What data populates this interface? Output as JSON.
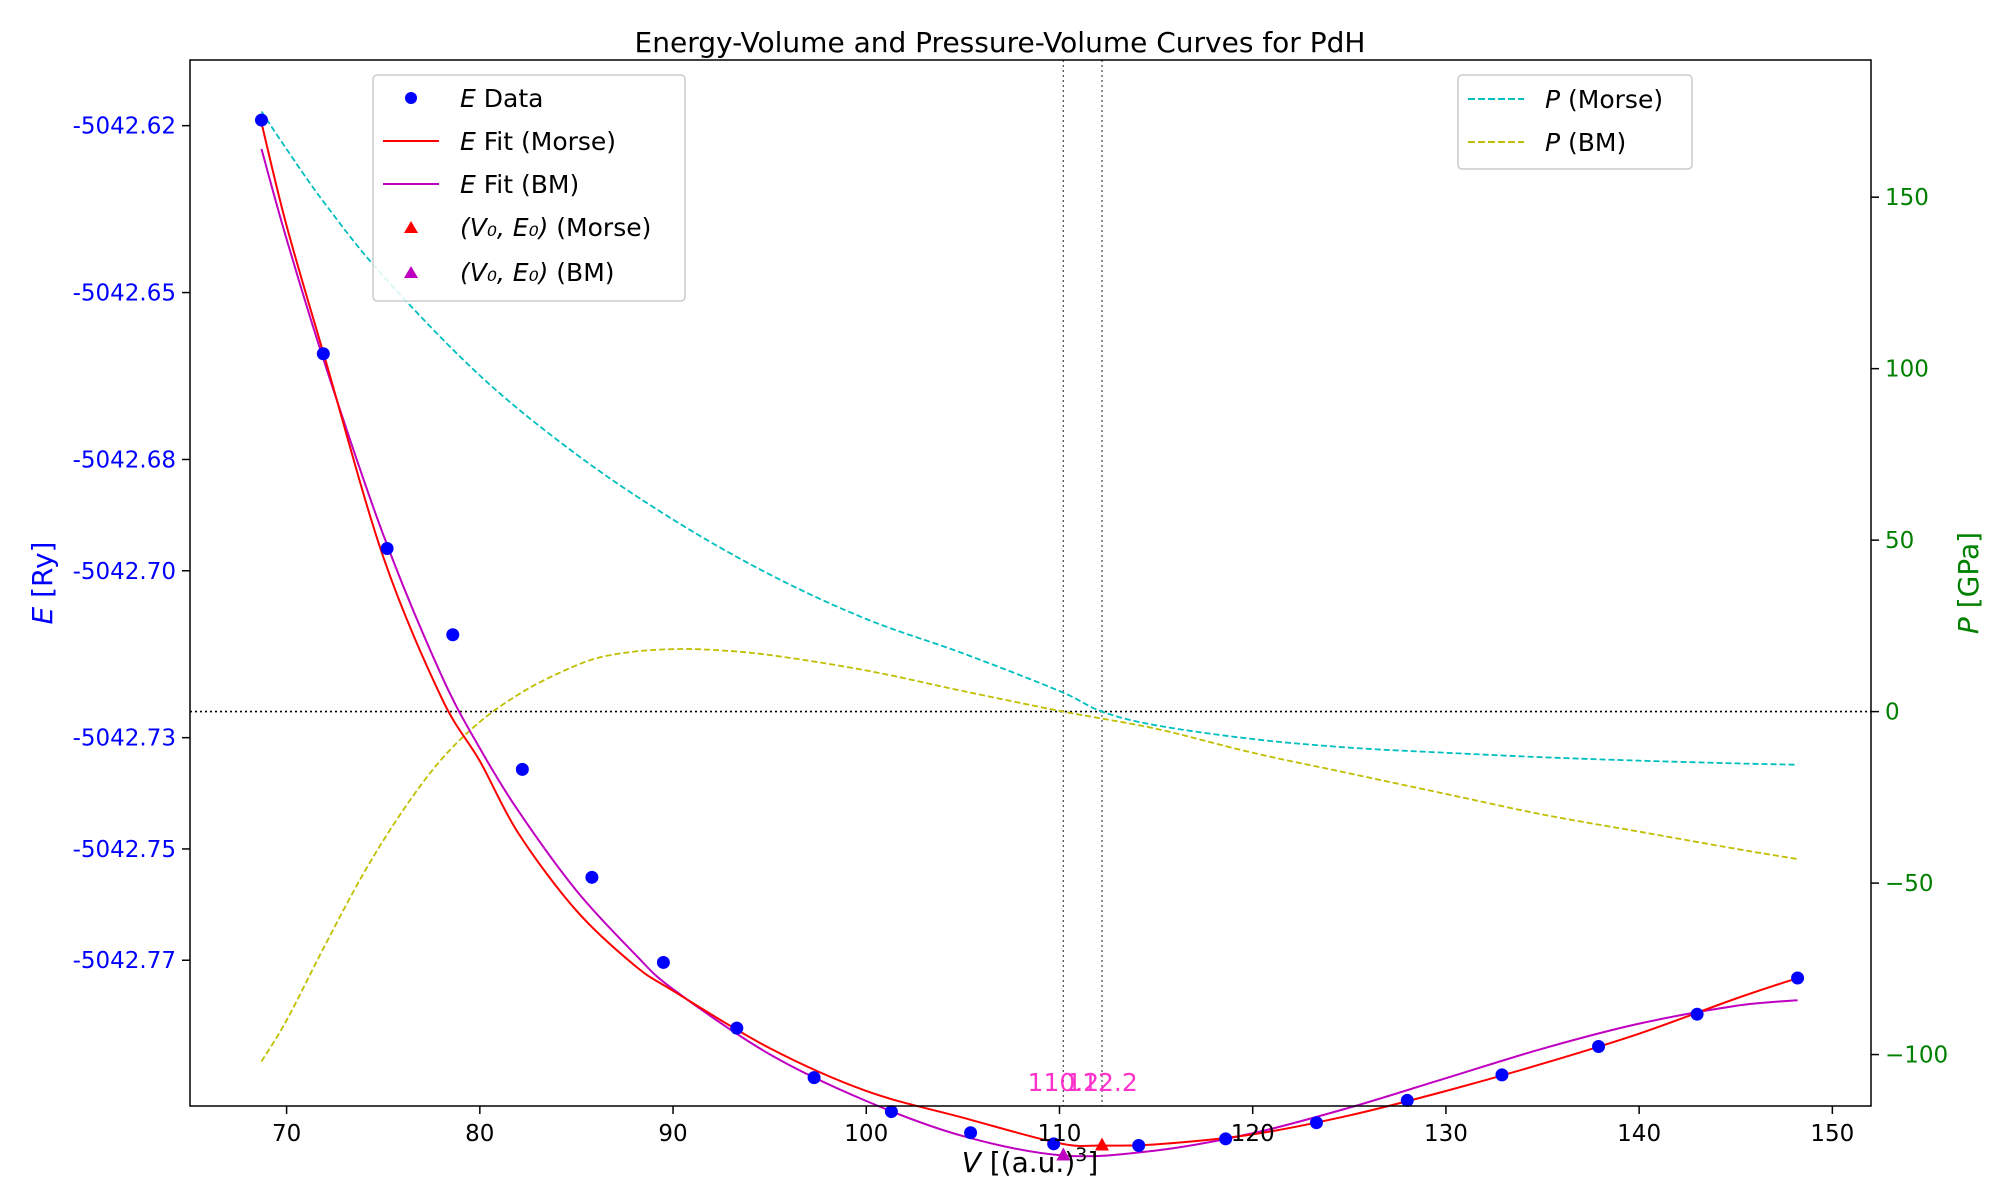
{
  "chart_data": {
    "type": "line",
    "title": "Energy-Volume and Pressure-Volume Curves for PdH",
    "xlabel": "V [(a.u.)³]",
    "ylabel_left": "E [Ry]",
    "ylabel_right": "P [GPa]",
    "xlim": [
      65,
      152
    ],
    "ylim_left": [
      -5042.7962,
      -5042.6082
    ],
    "ylim_right": [
      -115,
      190
    ],
    "x_ticks": [
      70,
      80,
      90,
      100,
      110,
      120,
      130,
      140,
      150
    ],
    "y_left_ticks": [
      -5042.62,
      -5042.65,
      -5042.68,
      -5042.7,
      -5042.73,
      -5042.75,
      -5042.77
    ],
    "y_left_tick_labels": [
      "-5042.62",
      "-5042.65",
      "-5042.68",
      "-5042.70",
      "-5042.73",
      "-5042.75",
      "-5042.77"
    ],
    "y_right_ticks": [
      -100,
      -50,
      0,
      50,
      100,
      150
    ],
    "energy_data": {
      "name": "E Data",
      "x": [
        68.7,
        71.9,
        75.2,
        78.6,
        82.2,
        85.8,
        89.5,
        93.3,
        97.3,
        101.3,
        105.4,
        109.7,
        114.1,
        118.6,
        123.3,
        128.0,
        132.9,
        137.9,
        143.0,
        148.2
      ],
      "y": [
        -5042.619,
        -5042.661,
        -5042.696,
        -5042.7115,
        -5042.7357,
        -5042.7551,
        -5042.7704,
        -5042.7822,
        -5042.7911,
        -5042.7972,
        -5042.801,
        -5042.803,
        -5042.8033,
        -5042.8021,
        -5042.7992,
        -5042.7952,
        -5042.7906,
        -5042.7855,
        -5042.7797,
        -5042.7732
      ]
    },
    "energy_fit_morse": {
      "name": "E Fit (Morse)",
      "x": [
        68.7,
        70,
        72,
        75,
        78,
        80,
        82,
        85,
        88,
        90,
        95,
        100,
        105,
        110,
        112.2,
        115,
        120,
        125,
        130,
        135,
        140,
        145,
        148.2
      ],
      "y": [
        -5042.6195,
        -5042.638,
        -5042.662,
        -5042.6975,
        -5042.7227,
        -5042.7342,
        -5042.7472,
        -5042.7611,
        -5042.7709,
        -5042.7755,
        -5042.7858,
        -5042.7935,
        -5042.7983,
        -5042.8029,
        -5042.8033,
        -5042.8031,
        -5042.8013,
        -5042.7979,
        -5042.7935,
        -5042.7886,
        -5042.7832,
        -5042.7769,
        -5042.7732
      ]
    },
    "energy_fit_bm": {
      "name": "E Fit (BM)",
      "x": [
        68.7,
        70,
        72,
        75,
        78,
        80,
        82,
        85,
        88,
        90,
        95,
        100,
        105,
        110.2,
        115,
        120,
        125,
        130,
        135,
        140,
        145,
        148.2
      ],
      "y": [
        -5042.6242,
        -5042.6404,
        -5042.663,
        -5042.6935,
        -5042.7187,
        -5042.7319,
        -5042.7432,
        -5042.7575,
        -5042.7688,
        -5042.7752,
        -5042.7869,
        -5042.7953,
        -5042.8016,
        -5042.8051,
        -5042.8042,
        -5042.8011,
        -5042.7965,
        -5042.7912,
        -5042.7859,
        -5042.7814,
        -5042.7782,
        -5042.7772
      ]
    },
    "pressure_morse": {
      "name": "P (Morse)",
      "x": [
        68.7,
        70,
        72,
        75,
        80,
        85,
        90,
        95,
        100,
        105,
        110,
        112.2,
        115,
        120,
        125,
        130,
        135,
        140,
        145,
        148.2
      ],
      "y": [
        175,
        164,
        148,
        127,
        98,
        75,
        56,
        40,
        27,
        17,
        6,
        0,
        -4,
        -8,
        -10.5,
        -12,
        -13.3,
        -14.3,
        -15.1,
        -15.5
      ]
    },
    "pressure_bm": {
      "name": "P (BM)",
      "x": [
        68.7,
        70,
        72,
        74,
        76,
        78,
        80,
        82,
        84,
        86,
        88,
        90,
        92,
        95,
        100,
        105,
        110.2,
        115,
        120,
        125,
        130,
        135,
        140,
        145,
        148.2
      ],
      "y": [
        -102,
        -90,
        -68,
        -47,
        -29,
        -14,
        -3,
        5,
        11,
        15.5,
        17.5,
        18.2,
        18,
        16.5,
        12,
        6,
        0,
        -5,
        -12,
        -18,
        -24,
        -30,
        -35,
        -40,
        -43
      ]
    },
    "minima": [
      {
        "name": "(V0, E0) (Morse)",
        "v0": 112.2,
        "e0": -5042.8033,
        "label": "112.2",
        "color": "#ff0000"
      },
      {
        "name": "(V0, E0) (BM)",
        "v0": 110.2,
        "e0": -5042.8051,
        "label": "110.2",
        "color": "#c000c0"
      }
    ],
    "legend_left": {
      "placement": "upper-left",
      "entries": [
        {
          "label_math": "E",
          "label_rest": " Data",
          "marker": "circle",
          "color": "#0000ff"
        },
        {
          "label_math": "E",
          "label_rest": " Fit (Morse)",
          "marker": "line",
          "color": "#ff0000"
        },
        {
          "label_math": "E",
          "label_rest": " Fit (BM)",
          "marker": "line",
          "color": "#c000c0"
        },
        {
          "label_math": "(V₀, E₀)",
          "label_rest": " (Morse)",
          "marker": "triangle",
          "color": "#ff0000"
        },
        {
          "label_math": "(V₀, E₀)",
          "label_rest": " (BM)",
          "marker": "triangle",
          "color": "#c000c0"
        }
      ]
    },
    "legend_right": {
      "placement": "upper-right",
      "entries": [
        {
          "label_math": "P",
          "label_rest": " (Morse)",
          "marker": "dashed",
          "color": "#00bfbf"
        },
        {
          "label_math": "P",
          "label_rest": " (BM)",
          "marker": "dashed",
          "color": "#bfbf00"
        }
      ]
    },
    "colors": {
      "left_axis": "#0000ff",
      "right_axis": "#008000",
      "morse_fit": "#ff0000",
      "bm_fit": "#c000c0",
      "p_morse": "#00bfbf",
      "p_bm": "#bfbf00",
      "data_points": "#0000ff",
      "min_label": "#ff33cc"
    },
    "reference_lines": [
      "P = 0 (dotted, horizontal)",
      "V = V0 Morse (dotted, vertical)",
      "V = V0 BM (dotted, vertical)"
    ],
    "grid": false
  }
}
